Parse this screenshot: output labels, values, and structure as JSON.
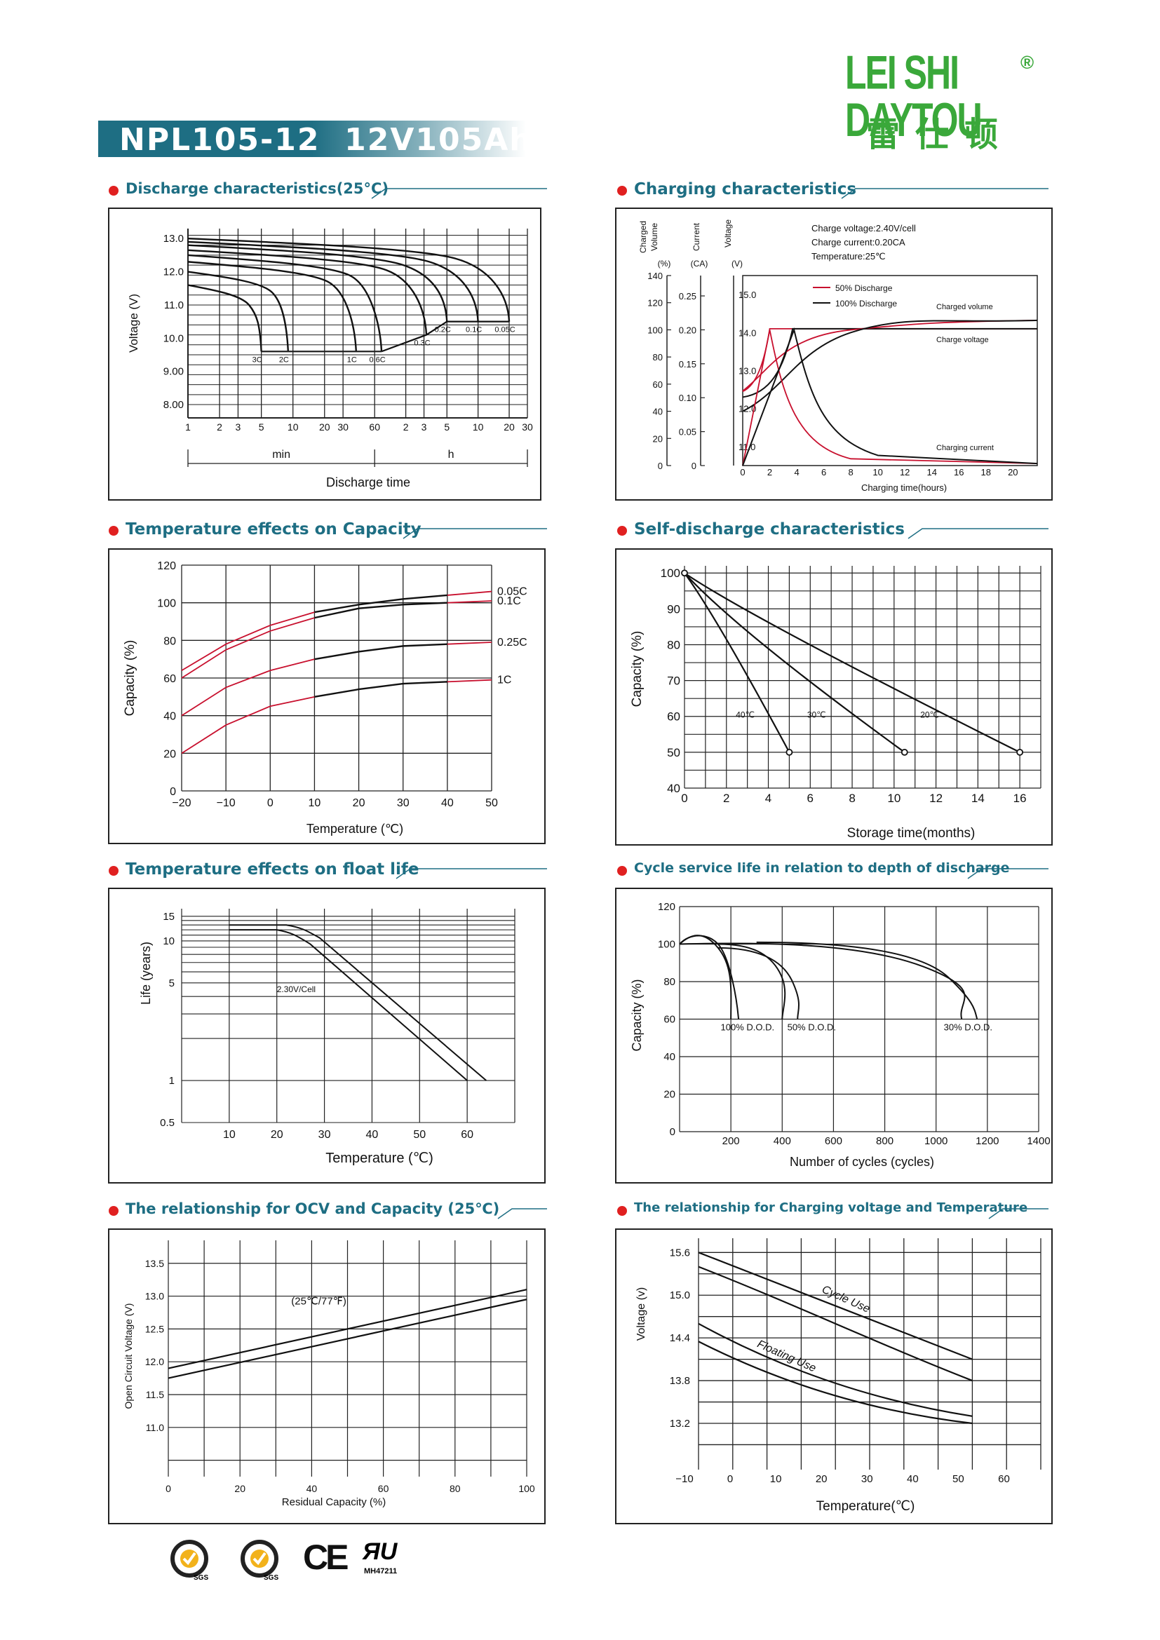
{
  "brand": {
    "name_en": "LEI SHI DAYTOU",
    "registered": "®",
    "name_cn": "雷仕顿",
    "color": "#3aa83a"
  },
  "product": {
    "title": "NPL105-12  12V105Ah"
  },
  "sections": {
    "discharge": "Discharge characteristics(25°C)",
    "charging": "Charging characteristics",
    "temp_capacity": "Temperature effects on Capacity",
    "self_discharge": "Self-discharge characteristics",
    "float_life": "Temperature effects on float life",
    "cycle_life": "Cycle service life in relation to depth of discharge",
    "ocv": "The relationship  for OCV and Capacity (25℃)",
    "charge_voltage": "The relationship for Charging voltage and Temperature"
  },
  "certifications": [
    {
      "icon": "sgs-badge-icon",
      "label": "SGS"
    },
    {
      "icon": "sgs-badge-icon",
      "label": "SGS"
    },
    {
      "icon": "ce-mark-icon",
      "label": "CE"
    },
    {
      "icon": "ul-mark-icon",
      "label": "MH47211"
    }
  ],
  "chart_data": [
    {
      "id": "discharge",
      "type": "line",
      "ylabel": "Voltage (V)",
      "xlabel": "Discharge time",
      "xunits": [
        "min",
        "h"
      ],
      "yticks": [
        "13.0",
        "12.0",
        "11.0",
        "10.0",
        "9.00",
        "8.00"
      ],
      "xticks": [
        "1",
        "2",
        "3",
        "5",
        "10",
        "20",
        "30",
        "60",
        "2",
        "3",
        "5",
        "10",
        "20",
        "30"
      ],
      "series": [
        {
          "name": "3C",
          "end_time_min": 5,
          "end_voltage": 9.6
        },
        {
          "name": "2C",
          "end_time_min": 9,
          "end_voltage": 9.6
        },
        {
          "name": "1C",
          "end_time_min": 40,
          "end_voltage": 9.6
        },
        {
          "name": "0.6C",
          "end_time_min": 70,
          "end_voltage": 9.6
        },
        {
          "name": "0.3C",
          "end_time_min": 190,
          "end_voltage": 10.1
        },
        {
          "name": "0.2C",
          "end_time_min": 300,
          "end_voltage": 10.5
        },
        {
          "name": "0.1C",
          "end_time_min": 600,
          "end_voltage": 10.5
        },
        {
          "name": "0.05C",
          "end_time_min": 1200,
          "end_voltage": 10.5
        }
      ]
    },
    {
      "id": "charging",
      "type": "line",
      "annotations": [
        "Charge voltage:2.40V/cell",
        "Charge current:0.20CA",
        "Temperature:25℃"
      ],
      "axes": [
        "Charged Volume (%)",
        "Current (CA)",
        "Voltage (V)"
      ],
      "axis_units": [
        "(%)",
        "(CA)",
        "(V)"
      ],
      "xlabel": "Charging time(hours)",
      "xticks": [
        "0",
        "2",
        "4",
        "6",
        "8",
        "10",
        "12",
        "14",
        "16",
        "18",
        "20"
      ],
      "volume_ticks": [
        "140",
        "120",
        "100",
        "80",
        "60",
        "40",
        "20",
        "0"
      ],
      "current_ticks": [
        "0.25",
        "0.20",
        "0.15",
        "0.10",
        "0.05",
        "0"
      ],
      "voltage_ticks": [
        "15.0",
        "14.0",
        "13.0",
        "12.0",
        "11.0"
      ],
      "legend": [
        {
          "name": "50% Discharge",
          "color": "#c8102e"
        },
        {
          "name": "100% Discharge",
          "color": "#111111"
        }
      ],
      "curve_labels": [
        "Charged volume",
        "Charge voltage",
        "Charging current"
      ]
    },
    {
      "id": "temp_capacity",
      "type": "line",
      "xlabel": "Temperature (℃)",
      "ylabel": "Capacity (%)",
      "xticks": [
        "−20",
        "−10",
        "0",
        "10",
        "20",
        "30",
        "40",
        "50"
      ],
      "yticks": [
        "120",
        "100",
        "80",
        "60",
        "40",
        "20",
        "0"
      ],
      "x": [
        -20,
        -10,
        0,
        10,
        20,
        30,
        40,
        50
      ],
      "series": [
        {
          "name": "0.05C",
          "values": [
            64,
            78,
            88,
            95,
            99,
            102,
            104,
            106
          ]
        },
        {
          "name": "0.1C",
          "values": [
            60,
            75,
            85,
            92,
            97,
            99,
            100,
            101
          ]
        },
        {
          "name": "0.25C",
          "values": [
            40,
            55,
            64,
            70,
            74,
            77,
            78,
            79
          ]
        },
        {
          "name": "1C",
          "values": [
            20,
            35,
            45,
            50,
            54,
            57,
            58,
            59
          ]
        }
      ]
    },
    {
      "id": "self_discharge",
      "type": "line",
      "xlabel": "Storage time(months)",
      "ylabel": "Capacity (%)",
      "xticks": [
        "0",
        "2",
        "4",
        "6",
        "8",
        "10",
        "12",
        "14",
        "16"
      ],
      "yticks": [
        "100",
        "90",
        "80",
        "70",
        "60",
        "50",
        "40"
      ],
      "series": [
        {
          "name": "40℃",
          "x": [
            0,
            5
          ],
          "values": [
            100,
            50
          ]
        },
        {
          "name": "30℃",
          "x": [
            0,
            10.5
          ],
          "values": [
            100,
            50
          ]
        },
        {
          "name": "20℃",
          "x": [
            0,
            16
          ],
          "values": [
            100,
            50
          ]
        }
      ]
    },
    {
      "id": "float_life",
      "type": "line",
      "xlabel": "Temperature (℃)",
      "ylabel": "Life (years)",
      "xticks": [
        "10",
        "20",
        "30",
        "40",
        "50",
        "60"
      ],
      "yticks": [
        "15",
        "10",
        "5",
        "1",
        "0.5"
      ],
      "annotation": "2.30V/Cell",
      "series": [
        {
          "name": "2.30V/Cell",
          "x": [
            20,
            25,
            60
          ],
          "values": [
            12,
            11,
            1
          ]
        }
      ]
    },
    {
      "id": "cycle_life",
      "type": "line",
      "xlabel": "Number of cycles (cycles)",
      "ylabel": "Capacity (%)",
      "xticks": [
        "200",
        "400",
        "600",
        "800",
        "1000",
        "1200",
        "1400"
      ],
      "yticks": [
        "120",
        "100",
        "80",
        "60",
        "40",
        "20",
        "0"
      ],
      "series": [
        {
          "name": "100% D.O.D.",
          "end_cycles": 220,
          "end_capacity": 60
        },
        {
          "name": "50% D.O.D.",
          "end_cycles": 460,
          "end_capacity": 60
        },
        {
          "name": "30% D.O.D.",
          "end_cycles": 1150,
          "end_capacity": 60
        }
      ]
    },
    {
      "id": "ocv",
      "type": "line",
      "xlabel": "Residual Capacity (%)",
      "ylabel": "Open Circuit Voltage (V)",
      "xticks": [
        "0",
        "20",
        "40",
        "60",
        "80",
        "100"
      ],
      "yticks": [
        "13.5",
        "13.0",
        "12.5",
        "12.0",
        "11.5",
        "11.0"
      ],
      "annotation": "(25℃/77℉)",
      "series": [
        {
          "name": "upper",
          "x": [
            0,
            100
          ],
          "values": [
            11.9,
            13.1
          ]
        },
        {
          "name": "lower",
          "x": [
            0,
            100
          ],
          "values": [
            11.75,
            12.95
          ]
        }
      ]
    },
    {
      "id": "charge_voltage",
      "type": "line",
      "xlabel": "Temperature(℃)",
      "ylabel": "Voltage (v)",
      "xticks": [
        "−10",
        "0",
        "10",
        "20",
        "30",
        "40",
        "50",
        "60"
      ],
      "yticks": [
        "15.6",
        "15.0",
        "14.4",
        "13.8",
        "13.2"
      ],
      "series": [
        {
          "name": "Cycle Use",
          "x": [
            -10,
            50
          ],
          "values": [
            15.55,
            13.98
          ]
        },
        {
          "name": "Floating Use",
          "x": [
            -10,
            50
          ],
          "values": [
            14.5,
            13.2
          ]
        }
      ]
    }
  ]
}
